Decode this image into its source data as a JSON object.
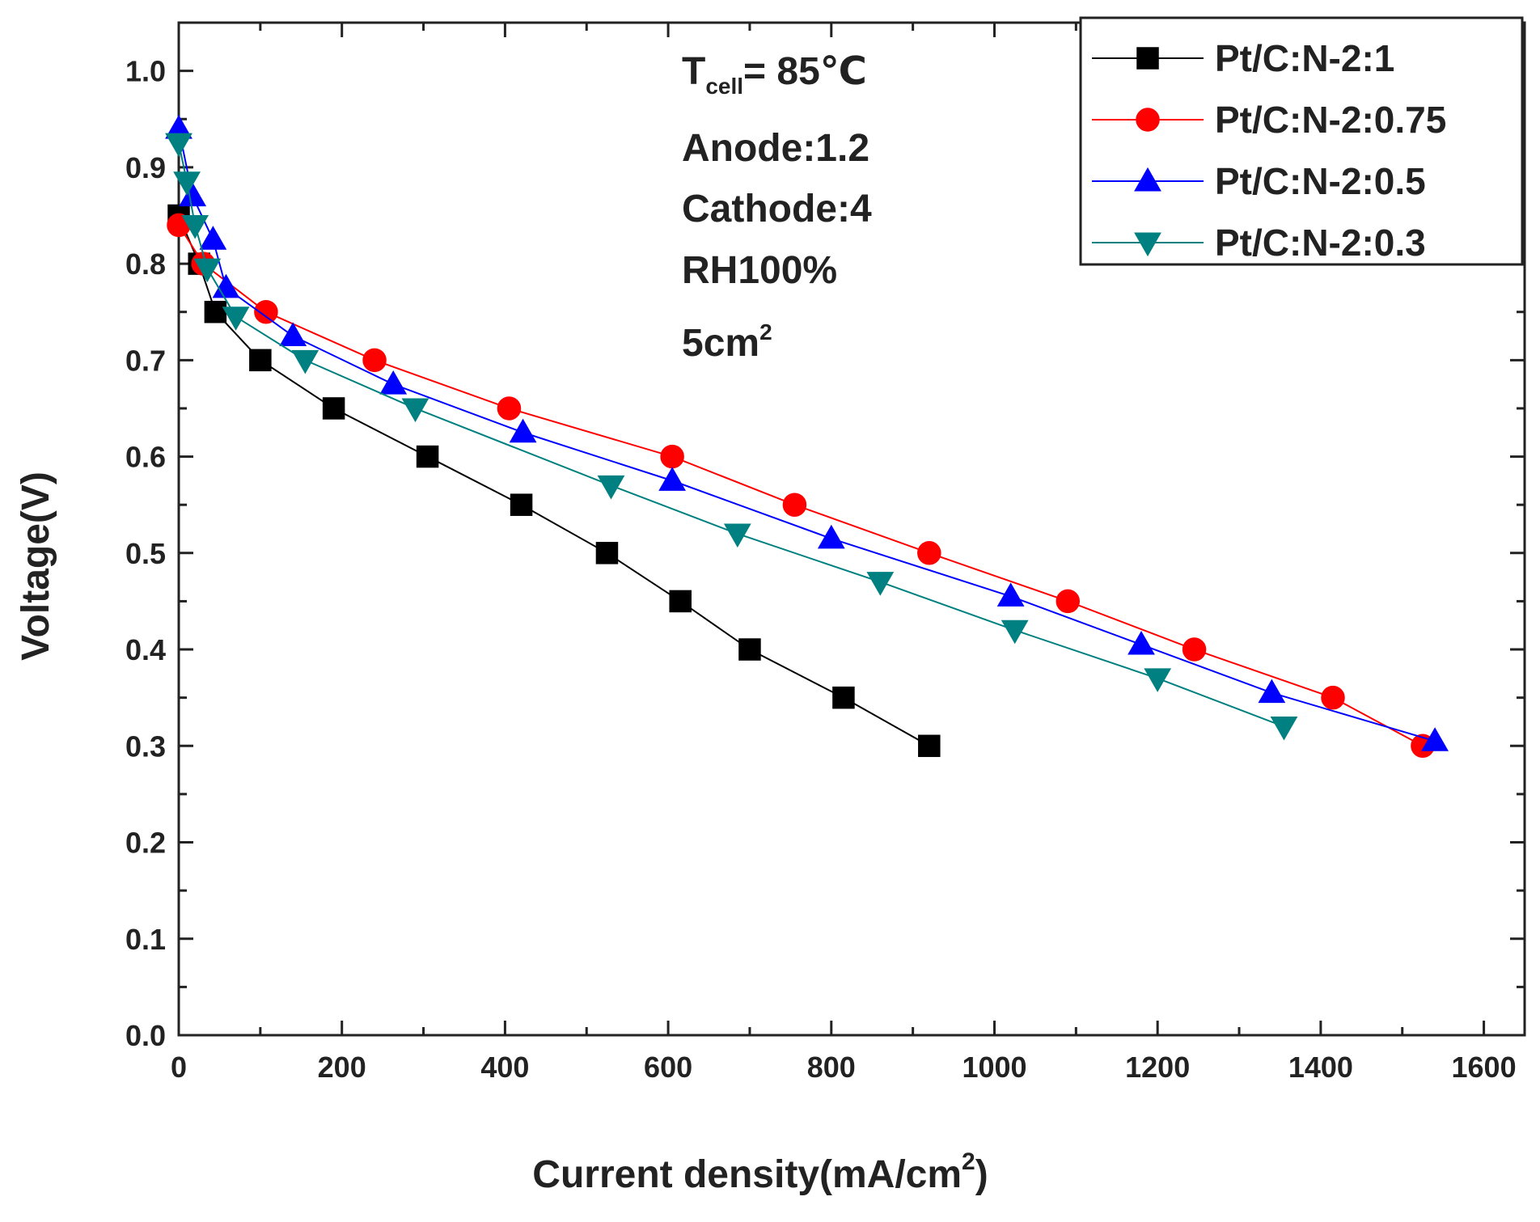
{
  "chart_data": {
    "type": "line",
    "title": "",
    "xlabel": "Current density(mA/cm",
    "xlabel_sup": "2",
    "xlabel_tail": ")",
    "ylabel": "Voltage(V)",
    "xlim": [
      0,
      1650
    ],
    "ylim": [
      0,
      1.05
    ],
    "xticks": [
      0,
      200,
      400,
      600,
      800,
      1000,
      1200,
      1400,
      1600
    ],
    "yticks": [
      0.0,
      0.1,
      0.2,
      0.3,
      0.4,
      0.5,
      0.6,
      0.7,
      0.8,
      0.9,
      1.0
    ],
    "xtick_labels": [
      "0",
      "200",
      "400",
      "600",
      "800",
      "1000",
      "1200",
      "1400",
      "1600"
    ],
    "ytick_labels": [
      "0.0",
      "0.1",
      "0.2",
      "0.3",
      "0.4",
      "0.5",
      "0.6",
      "0.7",
      "0.8",
      "0.9",
      "1.0"
    ],
    "legend_position": "top-right",
    "grid": false,
    "annotations": {
      "temp_main": "T",
      "temp_sub": "cell",
      "temp_value": "= 85℃",
      "anode": "Anode:1.2",
      "cathode": "Cathode:4",
      "rh": "RH100%",
      "area_main": "5cm",
      "area_sup": "2"
    },
    "series": [
      {
        "name": "Pt/C:N-2:1",
        "color": "#000000",
        "marker": "square",
        "points": [
          [
            0,
            0.85
          ],
          [
            25,
            0.8
          ],
          [
            45,
            0.75
          ],
          [
            100,
            0.7
          ],
          [
            190,
            0.65
          ],
          [
            305,
            0.6
          ],
          [
            420,
            0.55
          ],
          [
            525,
            0.5
          ],
          [
            615,
            0.45
          ],
          [
            700,
            0.4
          ],
          [
            815,
            0.35
          ],
          [
            920,
            0.3
          ]
        ]
      },
      {
        "name": "Pt/C:N-2:0.75",
        "color": "#ff0000",
        "marker": "circle",
        "points": [
          [
            0,
            0.84
          ],
          [
            30,
            0.8
          ],
          [
            107,
            0.75
          ],
          [
            240,
            0.7
          ],
          [
            405,
            0.65
          ],
          [
            605,
            0.6
          ],
          [
            755,
            0.55
          ],
          [
            920,
            0.5
          ],
          [
            1090,
            0.45
          ],
          [
            1245,
            0.4
          ],
          [
            1415,
            0.35
          ],
          [
            1525,
            0.3
          ]
        ]
      },
      {
        "name": "Pt/C:N-2:0.5",
        "color": "#0000ff",
        "marker": "triangle-up",
        "points": [
          [
            0,
            0.94
          ],
          [
            17,
            0.87
          ],
          [
            42,
            0.825
          ],
          [
            58,
            0.775
          ],
          [
            140,
            0.725
          ],
          [
            263,
            0.675
          ],
          [
            422,
            0.625
          ],
          [
            605,
            0.575
          ],
          [
            800,
            0.515
          ],
          [
            1020,
            0.455
          ],
          [
            1180,
            0.405
          ],
          [
            1340,
            0.355
          ],
          [
            1540,
            0.305
          ]
        ]
      },
      {
        "name": "Pt/C:N-2:0.3",
        "color": "#008080",
        "marker": "triangle-down",
        "points": [
          [
            0,
            0.925
          ],
          [
            10,
            0.885
          ],
          [
            20,
            0.84
          ],
          [
            35,
            0.795
          ],
          [
            70,
            0.745
          ],
          [
            155,
            0.7
          ],
          [
            290,
            0.65
          ],
          [
            530,
            0.57
          ],
          [
            685,
            0.52
          ],
          [
            860,
            0.47
          ],
          [
            1025,
            0.42
          ],
          [
            1200,
            0.37
          ],
          [
            1355,
            0.32
          ]
        ]
      }
    ]
  }
}
